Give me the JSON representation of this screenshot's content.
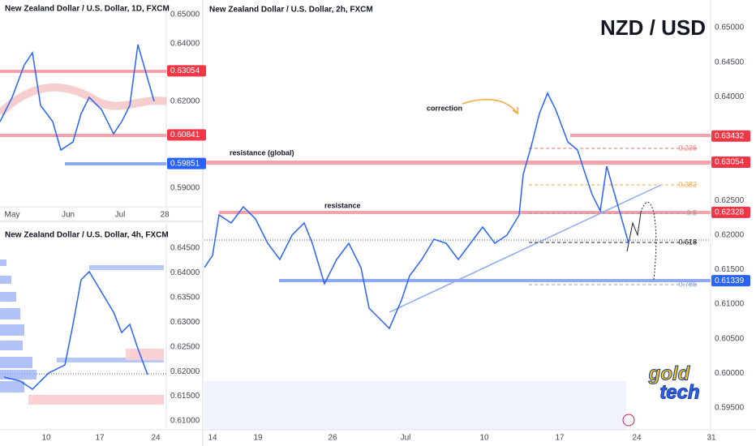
{
  "panels": [
    {
      "title": "New Zealand Dollar / U.S. Dollar, 1D, FXCM",
      "price_axis": [
        "0.65000",
        "0.64000",
        "0.62000",
        "0.59000"
      ],
      "price_tags": [
        {
          "label": "0.63054",
          "color": "#f23645"
        },
        {
          "label": "0.60841",
          "color": "#f23645"
        },
        {
          "label": "0.59851",
          "color": "#2962ff"
        }
      ],
      "time_axis": [
        "May",
        "Jun",
        "Jul",
        "28"
      ]
    },
    {
      "title": "New Zealand Dollar / U.S. Dollar, 4h, FXCM",
      "price_axis": [
        "0.64500",
        "0.64000",
        "0.63500",
        "0.63000",
        "0.62500",
        "0.62000",
        "0.61500",
        "0.61000"
      ],
      "price_tags": [],
      "time_axis": [
        "10",
        "17",
        "24"
      ]
    },
    {
      "title": "New Zealand Dollar / U.S. Dollar, 2h, FXCM",
      "heading": "NZD / USD",
      "price_axis": [
        "0.65000",
        "0.64500",
        "0.64000",
        "0.62500",
        "0.62000",
        "0.61500",
        "0.61000",
        "0.60500",
        "0.60000",
        "0.59500"
      ],
      "price_tags": [
        {
          "label": "0.63432",
          "color": "#f23645"
        },
        {
          "label": "0.63054",
          "color": "#f23645"
        },
        {
          "label": "0.62328",
          "color": "#f23645"
        },
        {
          "label": "0.61339",
          "color": "#2962ff"
        }
      ],
      "time_axis": [
        "14",
        "19",
        "26",
        "Jul",
        "10",
        "17",
        "24",
        "31"
      ],
      "annotations": [
        "correction",
        "resistance (global)",
        "resistance"
      ],
      "fib_levels": [
        "0.236",
        "0.382",
        "0.5",
        "0.618",
        "0.786"
      ],
      "logo": [
        "gold",
        "tech"
      ]
    }
  ]
}
